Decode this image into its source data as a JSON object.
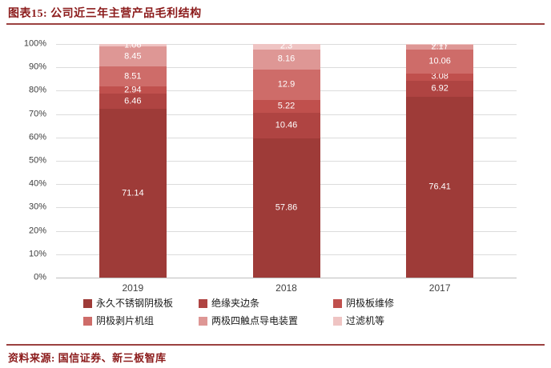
{
  "header": {
    "title": "图表15: 公司近三年主营产品毛利结构"
  },
  "footer": {
    "source": "资料来源: 国信证券、新三板智库"
  },
  "colors": {
    "accent_text": "#8B1A1A",
    "divider": "#9B4140",
    "gridline": "#DCDCDC",
    "axis_text": "#404040",
    "segment_label_text": "#FFFFFF"
  },
  "chart_data": {
    "type": "bar",
    "variant": "stacked-100-percent",
    "title": "公司近三年主营产品毛利结构",
    "xlabel": "",
    "ylabel": "",
    "categories": [
      "2019",
      "2018",
      "2017"
    ],
    "series": [
      {
        "name": "永久不锈钢阴极板",
        "color": "#9E3B38",
        "values": [
          71.14,
          57.86,
          76.41
        ],
        "labels": [
          "71.14",
          "57.86",
          "76.41"
        ]
      },
      {
        "name": "绝缘夹边条",
        "color": "#AF4442",
        "values": [
          6.46,
          10.46,
          6.92
        ],
        "labels": [
          "6.46",
          "10.46",
          "6.92"
        ]
      },
      {
        "name": "阴极板维修",
        "color": "#C0504D",
        "values": [
          2.94,
          5.22,
          3.08
        ],
        "labels": [
          "2.94",
          "5.22",
          "3.08"
        ]
      },
      {
        "name": "阴极剥片机组",
        "color": "#CE6C69",
        "values": [
          8.51,
          12.9,
          10.06
        ],
        "labels": [
          "8.51",
          "12.9",
          "10.06"
        ]
      },
      {
        "name": "两极四触点导电装置",
        "color": "#DE9795",
        "values": [
          8.45,
          8.16,
          2.17
        ],
        "labels": [
          "8.45",
          "8.16",
          "2.17"
        ]
      },
      {
        "name": "过滤机等",
        "color": "#EFC4C3",
        "values": [
          1.06,
          2.3,
          0.17
        ],
        "labels": [
          "1.06",
          "2.3",
          "0.17"
        ]
      }
    ],
    "y_ticks": [
      "0%",
      "10%",
      "20%",
      "30%",
      "40%",
      "50%",
      "60%",
      "70%",
      "80%",
      "90%",
      "100%"
    ],
    "ylim": [
      0,
      100
    ],
    "grid": true,
    "legend_position": "bottom"
  }
}
